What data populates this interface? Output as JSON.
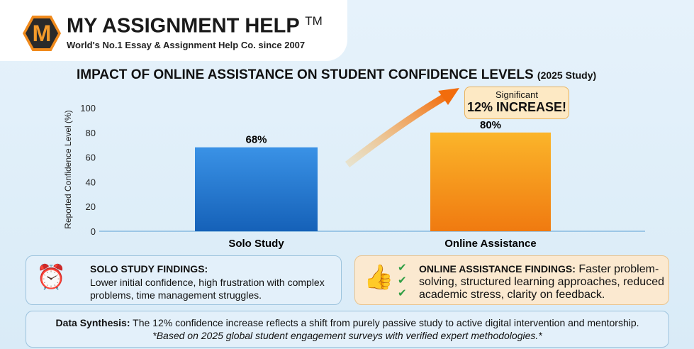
{
  "brand": {
    "name": "MY ASSIGNMENT HELP",
    "tm": "TM",
    "tagline": "World's No.1 Essay & Assignment Help Co. since 2007",
    "logo_letter": "M"
  },
  "title": {
    "main": "IMPACT OF ONLINE ASSISTANCE ON STUDENT CONFIDENCE LEVELS",
    "sub": "(2025 Study)"
  },
  "callout": {
    "line1": "Significant",
    "line2": "12% INCREASE!"
  },
  "chart_data": {
    "type": "bar",
    "categories": [
      "Solo Study",
      "Online Assistance"
    ],
    "values": [
      68,
      80
    ],
    "data_labels": [
      "68%",
      "80%"
    ],
    "ylabel": "Reported Confidence Level (%)",
    "ylim": [
      0,
      100
    ],
    "yticks": [
      0,
      20,
      40,
      60,
      80,
      100
    ],
    "colors": [
      "#1f78d1",
      "#f39a1a"
    ],
    "grid": false
  },
  "solo": {
    "heading": "SOLO STUDY FINDINGS:",
    "text": "Lower initial confidence, high frustration with complex problems, time management struggles."
  },
  "online": {
    "heading": "ONLINE ASSISTANCE FINDINGS:",
    "text": " Faster problem-solving, structured learning approaches, reduced academic stress, clarity on feedback."
  },
  "synthesis": {
    "label": "Data Synthesis:",
    "text": " The 12% confidence increase reflects a shift from purely passive study to active digital intervention and mentorship.",
    "note": "*Based on 2025 global student engagement surveys with verified expert methodologies.*"
  }
}
